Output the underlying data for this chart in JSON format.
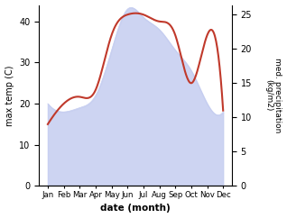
{
  "months": [
    "Jan",
    "Feb",
    "Mar",
    "Apr",
    "May",
    "Jun",
    "Jul",
    "Aug",
    "Sep",
    "Oct",
    "Nov",
    "Dec"
  ],
  "max_temp": [
    20,
    18,
    19,
    22,
    33,
    43,
    41,
    38,
    33,
    28,
    20,
    18
  ],
  "precipitation": [
    9,
    12,
    13,
    14,
    22,
    25,
    25,
    24,
    22,
    15,
    22,
    11
  ],
  "temp_fill_color": "#c5cdf0",
  "precip_line_color": "#c0392b",
  "ylabel_left": "max temp (C)",
  "ylabel_right": "med. precipitation\n(kg/m2)",
  "xlabel": "date (month)",
  "ylim_left": [
    0,
    44
  ],
  "ylim_right": [
    0,
    26.4
  ],
  "yticks_left": [
    0,
    10,
    20,
    30,
    40
  ],
  "yticks_right": [
    0,
    5,
    10,
    15,
    20,
    25
  ],
  "fig_width": 3.18,
  "fig_height": 2.42,
  "dpi": 100
}
